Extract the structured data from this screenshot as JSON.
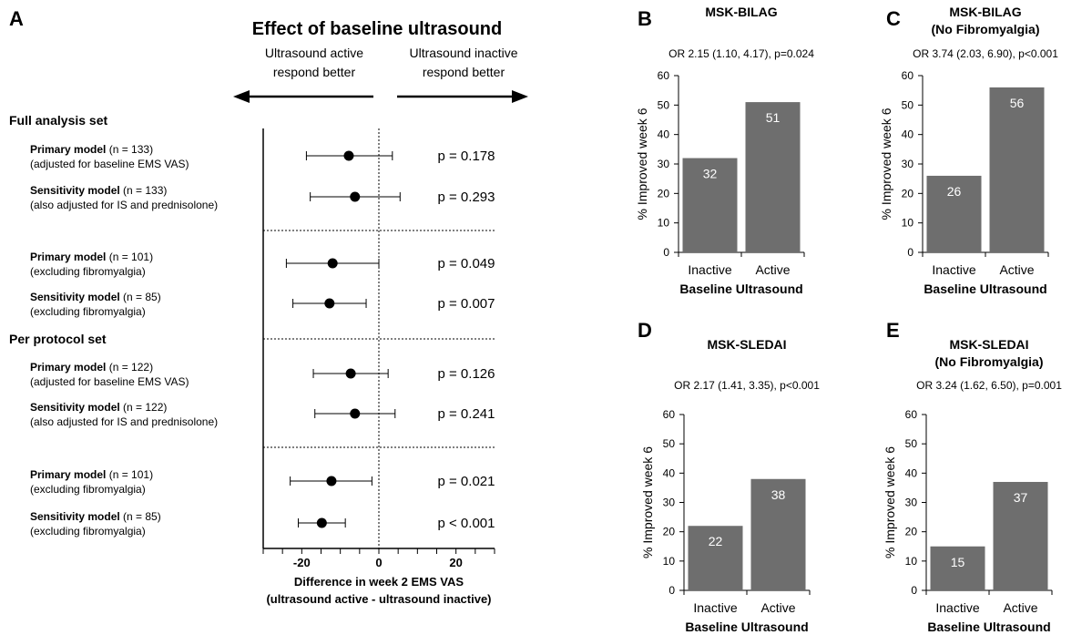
{
  "colors": {
    "bar": "#6e6e6e",
    "bar_label": "#ffffff",
    "axis": "#000000",
    "point": "#000000"
  },
  "chart_data": [
    {
      "panel": "A",
      "type": "scatter",
      "subtype": "forest",
      "title": "Effect of baseline ultrasound",
      "direction_left": [
        "Ultrasound active",
        "respond better"
      ],
      "direction_right": [
        "Ultrasound inactive",
        "respond better"
      ],
      "xlabel": [
        "Difference in week 2 EMS VAS",
        "(ultrasound active - ultrasound inactive)"
      ],
      "xlim": [
        -30,
        30
      ],
      "xticks": [
        -20,
        0,
        20
      ],
      "xtick_labels": [
        "-20",
        "0",
        "20"
      ],
      "reference_line": 0,
      "sections": [
        {
          "label": "Full analysis set",
          "rows": [
            0,
            1,
            2,
            3
          ]
        },
        {
          "label": "Per protocol set",
          "rows": [
            4,
            5,
            6,
            7
          ]
        }
      ],
      "rows": [
        {
          "model": "Primary model",
          "n": "(n = 133)",
          "note": "(adjusted for baseline EMS VAS)",
          "estimate": -7.8,
          "ci": [
            -18.8,
            3.5
          ],
          "p": "p = 0.178"
        },
        {
          "model": "Sensitivity model",
          "n": "(n = 133)",
          "note": "(also adjusted for IS and prednisolone)",
          "estimate": -6.2,
          "ci": [
            -17.8,
            5.5
          ],
          "p": "p = 0.293"
        },
        {
          "model": "Primary model",
          "n": "(n = 101)",
          "note": "(excluding fibromyalgia)",
          "estimate": -12.0,
          "ci": [
            -24.0,
            0.0
          ],
          "p": "p = 0.049"
        },
        {
          "model": "Sensitivity model",
          "n": "(n = 85)",
          "note": "(excluding fibromyalgia)",
          "estimate": -12.8,
          "ci": [
            -22.3,
            -3.3
          ],
          "p": "p = 0.007"
        },
        {
          "model": "Primary model",
          "n": "(n = 122)",
          "note": "(adjusted for baseline EMS VAS)",
          "estimate": -7.3,
          "ci": [
            -17.0,
            2.4
          ],
          "p": "p = 0.126"
        },
        {
          "model": "Sensitivity model",
          "n": "(n = 122)",
          "note": "(also adjusted for IS and prednisolone)",
          "estimate": -6.2,
          "ci": [
            -16.6,
            4.2
          ],
          "p": "p = 0.241"
        },
        {
          "model": "Primary model",
          "n": "(n = 101)",
          "note": "(excluding fibromyalgia)",
          "estimate": -12.3,
          "ci": [
            -23.0,
            -1.8
          ],
          "p": "p = 0.021"
        },
        {
          "model": "Sensitivity model",
          "n": "(n = 85)",
          "note": "(excluding fibromyalgia)",
          "estimate": -14.8,
          "ci": [
            -20.9,
            -8.7
          ],
          "p": "p < 0.001"
        }
      ]
    },
    {
      "panel": "B",
      "type": "bar",
      "title": [
        "MSK-BILAG"
      ],
      "subtitle": "OR 2.15 (1.10, 4.17), p=0.024",
      "categories": [
        "Inactive",
        "Active"
      ],
      "values": [
        32,
        51
      ],
      "xlabel": "Baseline Ultrasound",
      "ylabel": "% Improved week 6",
      "ylim": [
        0,
        60
      ],
      "yticks": [
        0,
        10,
        20,
        30,
        40,
        50,
        60
      ]
    },
    {
      "panel": "C",
      "type": "bar",
      "title": [
        "MSK-BILAG",
        "(No Fibromyalgia)"
      ],
      "subtitle": "OR 3.74 (2.03, 6.90), p<0.001",
      "categories": [
        "Inactive",
        "Active"
      ],
      "values": [
        26,
        56
      ],
      "xlabel": "Baseline Ultrasound",
      "ylabel": "% Improved week 6",
      "ylim": [
        0,
        60
      ],
      "yticks": [
        0,
        10,
        20,
        30,
        40,
        50,
        60
      ]
    },
    {
      "panel": "D",
      "type": "bar",
      "title": [
        "MSK-SLEDAI"
      ],
      "subtitle": "OR 2.17 (1.41, 3.35), p<0.001",
      "categories": [
        "Inactive",
        "Active"
      ],
      "values": [
        22,
        38
      ],
      "xlabel": "Baseline Ultrasound",
      "ylabel": "% Improved week 6",
      "ylim": [
        0,
        60
      ],
      "yticks": [
        0,
        10,
        20,
        30,
        40,
        50,
        60
      ]
    },
    {
      "panel": "E",
      "type": "bar",
      "title": [
        "MSK-SLEDAI",
        "(No Fibromyalgia)"
      ],
      "subtitle": "OR 3.24 (1.62, 6.50), p=0.001",
      "categories": [
        "Inactive",
        "Active"
      ],
      "values": [
        15,
        37
      ],
      "xlabel": "Baseline Ultrasound",
      "ylabel": "% Improved week 6",
      "ylim": [
        0,
        60
      ],
      "yticks": [
        0,
        10,
        20,
        30,
        40,
        50,
        60
      ]
    }
  ]
}
